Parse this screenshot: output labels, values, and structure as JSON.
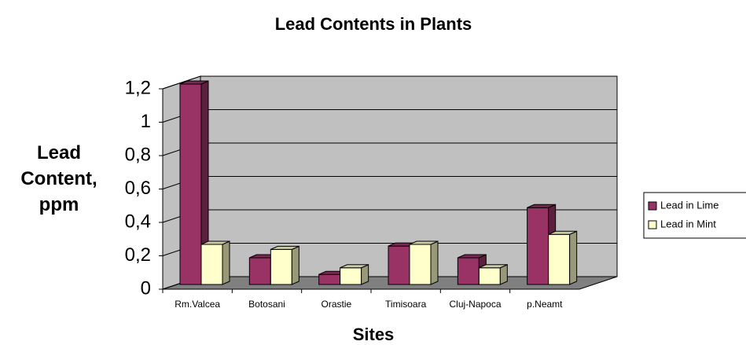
{
  "chart_data": {
    "type": "bar3d",
    "title": "Lead Contents in Plants",
    "x_label": "Sites",
    "y_label": "Lead Content, ppm",
    "categories": [
      "Rm.Valcea",
      "Botosani",
      "Orastie",
      "Timisoara",
      "Cluj-Napoca",
      "p.Neamt"
    ],
    "series": [
      {
        "name": "Lead in Lime",
        "color": "#993366",
        "values": [
          1.2,
          0.16,
          0.06,
          0.23,
          0.16,
          0.46
        ]
      },
      {
        "name": "Lead in Mint",
        "color": "#ffffcc",
        "values": [
          0.24,
          0.21,
          0.1,
          0.24,
          0.1,
          0.3
        ]
      }
    ],
    "ylim": [
      0,
      1.2
    ],
    "yticks": [
      0,
      {
        "value": 0.2,
        "label": "0,2"
      },
      {
        "value": 0.4,
        "label": "0,4"
      },
      {
        "value": 0.6,
        "label": "0,6"
      },
      {
        "value": 0.8,
        "label": "0,8"
      },
      1,
      {
        "value": 1.2,
        "label": "1,2"
      }
    ],
    "grid": true,
    "legend": "right"
  }
}
